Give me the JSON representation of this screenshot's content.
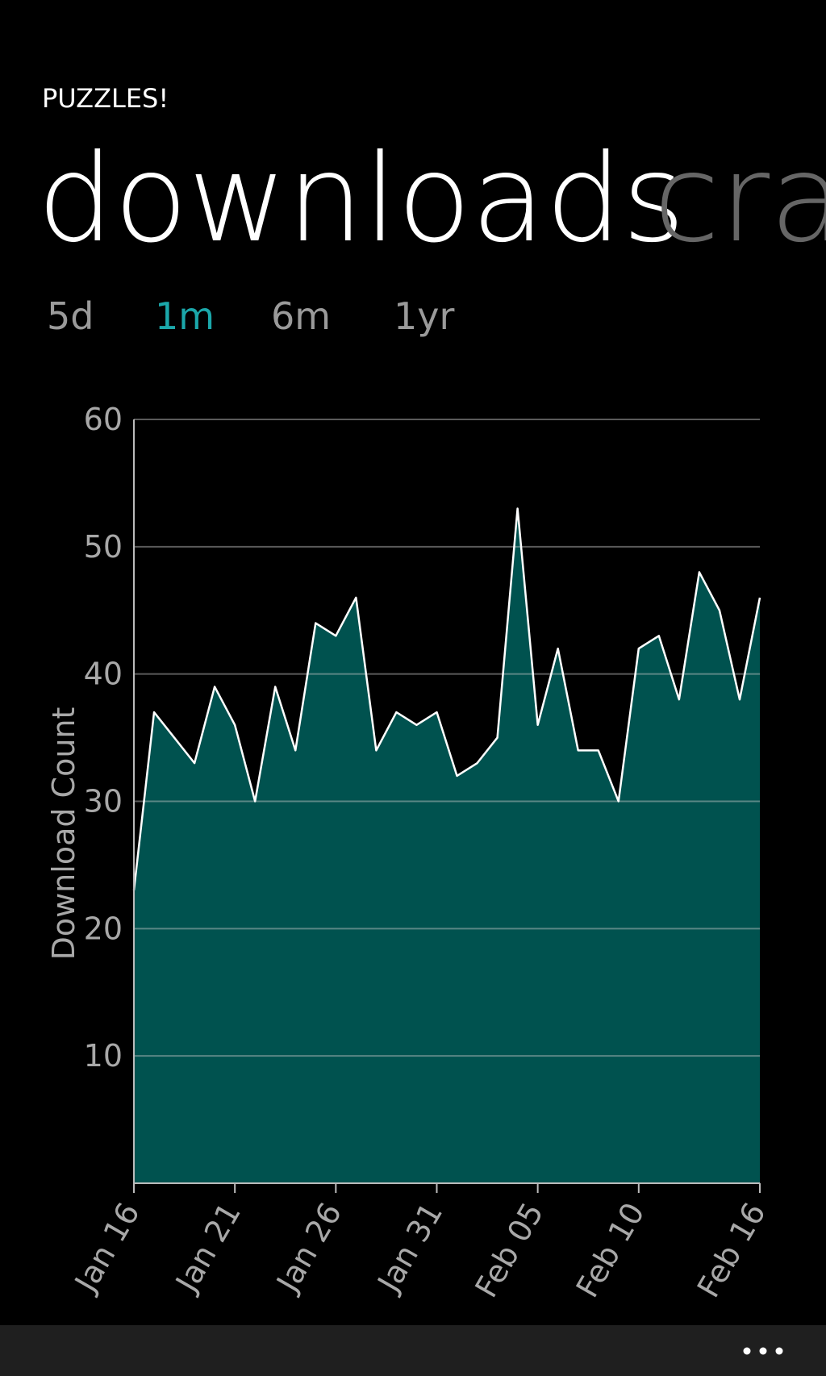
{
  "header": {
    "app_title": "PUZZLES!"
  },
  "pivot": {
    "items": [
      "downloads",
      "crashes"
    ],
    "selected": 0
  },
  "tabs": {
    "items": [
      "5d",
      "1m",
      "6m",
      "1yr"
    ],
    "selected": 1
  },
  "chart_data": {
    "type": "area",
    "y_label": "Download Count",
    "categories": [
      "Jan 16",
      null,
      null,
      null,
      null,
      "Jan 21",
      null,
      null,
      null,
      null,
      "Jan 26",
      null,
      null,
      null,
      null,
      "Jan 31",
      null,
      null,
      null,
      null,
      "Feb 05",
      null,
      null,
      null,
      null,
      "Feb 10",
      null,
      null,
      null,
      null,
      null,
      "Feb 16"
    ],
    "values": [
      23,
      37,
      35,
      33,
      39,
      36,
      30,
      39,
      34,
      44,
      43,
      46,
      34,
      37,
      36,
      37,
      32,
      33,
      35,
      53,
      36,
      42,
      34,
      34,
      30,
      42,
      43,
      38,
      48,
      45,
      38,
      46
    ],
    "color": "#00524f",
    "line_color": "#ffffff",
    "ylim": [
      0,
      60
    ],
    "yticks": [
      10,
      20,
      30,
      40,
      50,
      60
    ],
    "grid": true
  }
}
